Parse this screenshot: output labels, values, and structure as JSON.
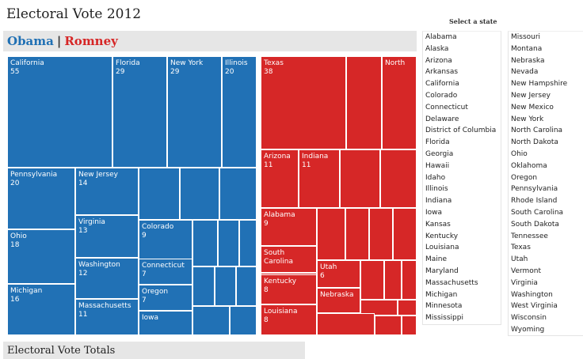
{
  "title": "Electoral Vote 2012",
  "candidates": {
    "obama": "Obama",
    "separator": "|",
    "romney": "Romney"
  },
  "select_label": "Select a state",
  "totals_label": "Electoral Vote Totals",
  "colors": {
    "obama": "#2171b5",
    "romney": "#d62727"
  },
  "treemap_cells": [
    {
      "name": "California",
      "votes": "55",
      "party": "obama"
    },
    {
      "name": "Florida",
      "votes": "29",
      "party": "obama"
    },
    {
      "name": "New York",
      "votes": "29",
      "party": "obama"
    },
    {
      "name": "Illinois",
      "votes": "20",
      "party": "obama"
    },
    {
      "name": "Pennsylvania",
      "votes": "20",
      "party": "obama"
    },
    {
      "name": "New Jersey",
      "votes": "14",
      "party": "obama"
    },
    {
      "name": "Virginia",
      "votes": "13",
      "party": "obama"
    },
    {
      "name": "Washington",
      "votes": "12",
      "party": "obama"
    },
    {
      "name": "Massachusetts",
      "votes": "11",
      "party": "obama"
    },
    {
      "name": "Colorado",
      "votes": "9",
      "party": "obama"
    },
    {
      "name": "Connecticut",
      "votes": "7",
      "party": "obama"
    },
    {
      "name": "Oregon",
      "votes": "7",
      "party": "obama"
    },
    {
      "name": "Iowa",
      "votes": "",
      "party": "obama"
    },
    {
      "name": "Ohio",
      "votes": "18",
      "party": "obama"
    },
    {
      "name": "Michigan",
      "votes": "16",
      "party": "obama"
    },
    {
      "name": "",
      "votes": "",
      "party": "obama"
    },
    {
      "name": "",
      "votes": "",
      "party": "obama"
    },
    {
      "name": "",
      "votes": "",
      "party": "obama"
    },
    {
      "name": "",
      "votes": "",
      "party": "obama"
    },
    {
      "name": "",
      "votes": "",
      "party": "obama"
    },
    {
      "name": "",
      "votes": "",
      "party": "obama"
    },
    {
      "name": "",
      "votes": "",
      "party": "obama"
    },
    {
      "name": "",
      "votes": "",
      "party": "obama"
    },
    {
      "name": "",
      "votes": "",
      "party": "obama"
    },
    {
      "name": "",
      "votes": "",
      "party": "obama"
    },
    {
      "name": "",
      "votes": "",
      "party": "obama"
    },
    {
      "name": "Texas",
      "votes": "38",
      "party": "romney"
    },
    {
      "name": "North",
      "votes": "",
      "party": "romney"
    },
    {
      "name": "",
      "votes": "",
      "party": "romney"
    },
    {
      "name": "Arizona",
      "votes": "11",
      "party": "romney"
    },
    {
      "name": "Indiana",
      "votes": "11",
      "party": "romney"
    },
    {
      "name": "",
      "votes": "",
      "party": "romney"
    },
    {
      "name": "",
      "votes": "",
      "party": "romney"
    },
    {
      "name": "Alabama",
      "votes": "9",
      "party": "romney"
    },
    {
      "name": "",
      "votes": "",
      "party": "romney"
    },
    {
      "name": "",
      "votes": "",
      "party": "romney"
    },
    {
      "name": "",
      "votes": "",
      "party": "romney"
    },
    {
      "name": "",
      "votes": "",
      "party": "romney"
    },
    {
      "name": "",
      "votes": "",
      "party": "romney"
    },
    {
      "name": "South Carolina",
      "votes": "",
      "party": "romney"
    },
    {
      "name": "",
      "votes": "",
      "party": "romney"
    },
    {
      "name": "Utah",
      "votes": "6",
      "party": "romney"
    },
    {
      "name": "",
      "votes": "",
      "party": "romney"
    },
    {
      "name": "",
      "votes": "",
      "party": "romney"
    },
    {
      "name": "",
      "votes": "",
      "party": "romney"
    },
    {
      "name": "Kentucky",
      "votes": "8",
      "party": "romney"
    },
    {
      "name": "Nebraska",
      "votes": "",
      "party": "romney"
    },
    {
      "name": "",
      "votes": "",
      "party": "romney"
    },
    {
      "name": "",
      "votes": "",
      "party": "romney"
    },
    {
      "name": "Louisiana",
      "votes": "8",
      "party": "romney"
    },
    {
      "name": "",
      "votes": "",
      "party": "romney"
    },
    {
      "name": "",
      "votes": "",
      "party": "romney"
    },
    {
      "name": "",
      "votes": "",
      "party": "romney"
    }
  ],
  "states_col1": [
    "Alabama",
    "Alaska",
    "Arizona",
    "Arkansas",
    "California",
    "Colorado",
    "Connecticut",
    "Delaware",
    "District of Columbia",
    "Florida",
    "Georgia",
    "Hawaii",
    "Idaho",
    "Illinois",
    "Indiana",
    "Iowa",
    "Kansas",
    "Kentucky",
    "Louisiana",
    "Maine",
    "Maryland",
    "Massachusetts",
    "Michigan",
    "Minnesota",
    "Mississippi"
  ],
  "states_col2": [
    "Missouri",
    "Montana",
    "Nebraska",
    "Nevada",
    "New Hampshire",
    "New Jersey",
    "New Mexico",
    "New York",
    "North Carolina",
    "North Dakota",
    "Ohio",
    "Oklahoma",
    "Oregon",
    "Pennsylvania",
    "Rhode Island",
    "South Carolina",
    "South Dakota",
    "Tennessee",
    "Texas",
    "Utah",
    "Vermont",
    "Virginia",
    "Washington",
    "West Virginia",
    "Wisconsin",
    "Wyoming"
  ]
}
